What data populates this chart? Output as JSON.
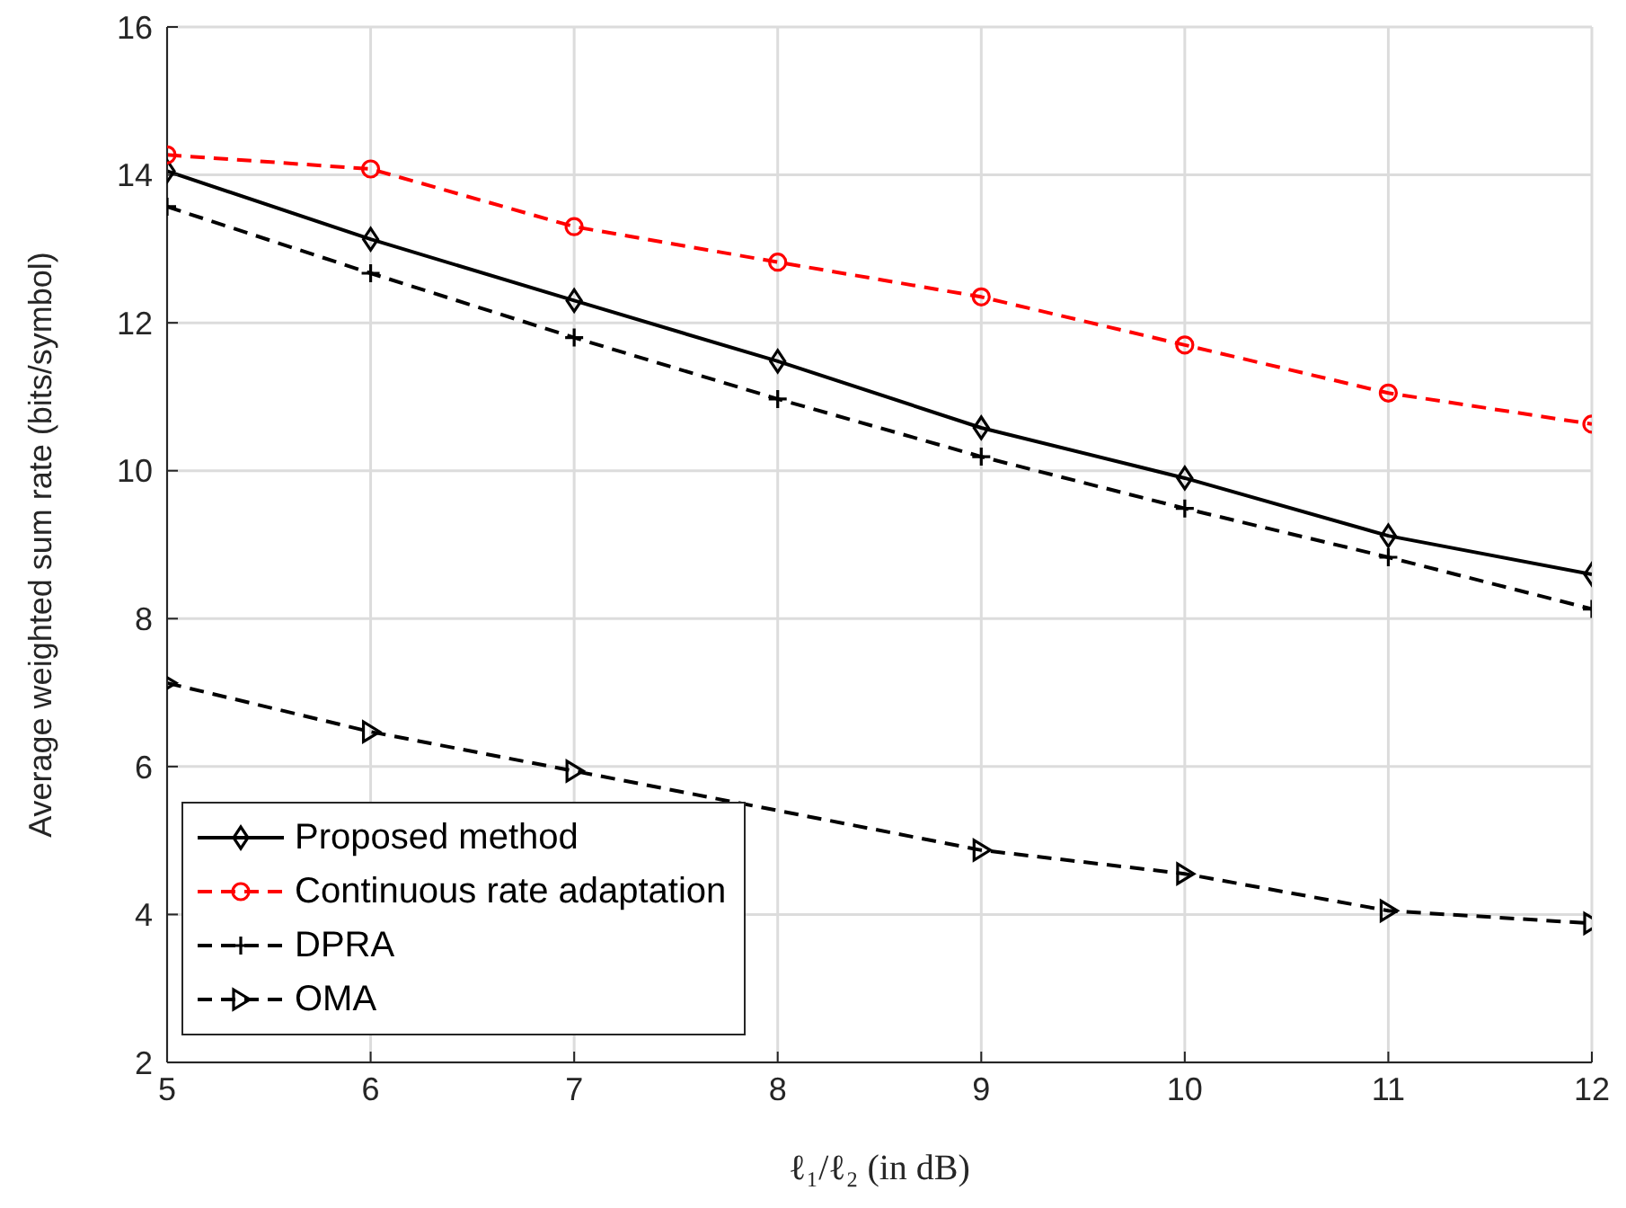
{
  "chart_data": {
    "type": "line",
    "xlabel": "ℓ₁/ℓ₂ (in dB)",
    "ylabel": "Average weighted sum rate (bits/symbol)",
    "x": [
      5,
      6,
      7,
      8,
      9,
      10,
      11,
      12
    ],
    "series": [
      {
        "name": "Proposed method",
        "color": "#000000",
        "marker": "diamond",
        "line_style": "solid",
        "values": [
          14.05,
          13.13,
          12.3,
          11.48,
          10.58,
          9.9,
          9.12,
          8.6
        ]
      },
      {
        "name": "Continuous rate adaptation",
        "color": "#ff0000",
        "marker": "circle",
        "line_style": "dashed",
        "values": [
          14.27,
          14.08,
          13.3,
          12.82,
          12.35,
          11.7,
          11.05,
          10.63
        ]
      },
      {
        "name": "DPRA",
        "color": "#000000",
        "marker": "cross",
        "line_style": "dashed",
        "values": [
          13.57,
          12.67,
          11.8,
          10.97,
          10.19,
          9.49,
          8.83,
          8.13
        ]
      },
      {
        "name": "OMA",
        "color": "#000000",
        "marker": "triangle",
        "line_style": "dashed",
        "values": [
          7.13,
          6.47,
          5.94,
          null,
          4.87,
          4.55,
          4.05,
          3.88
        ]
      }
    ],
    "xlim": [
      5,
      12
    ],
    "xticks": [
      5,
      6,
      7,
      8,
      9,
      10,
      11,
      12
    ],
    "ylim": [
      2,
      16
    ],
    "yticks": [
      2,
      4,
      6,
      8,
      10,
      12,
      14,
      16
    ],
    "grid": true,
    "legend": "bottom left"
  }
}
